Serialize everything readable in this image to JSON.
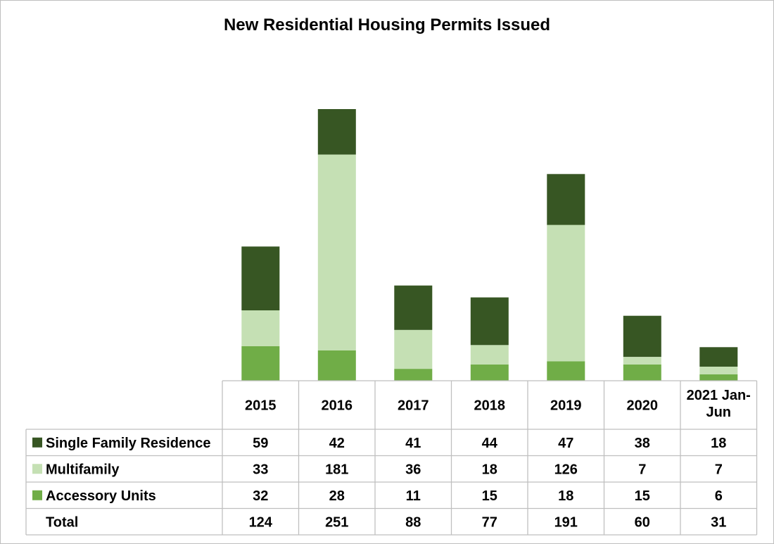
{
  "chart_data": {
    "type": "bar",
    "stacked": true,
    "title": "New Residential Housing Permits Issued",
    "categories": [
      "2015",
      "2016",
      "2017",
      "2018",
      "2019",
      "2020",
      "2021 Jan-Jun"
    ],
    "series": [
      {
        "name": "Accessory Units",
        "color": "#70ad47",
        "values": [
          32,
          28,
          11,
          15,
          18,
          15,
          6
        ]
      },
      {
        "name": "Multifamily",
        "color": "#c5e0b4",
        "values": [
          33,
          181,
          36,
          18,
          126,
          7,
          7
        ]
      },
      {
        "name": "Single Family Residence",
        "color": "#375623",
        "values": [
          59,
          42,
          41,
          44,
          47,
          38,
          18
        ]
      }
    ],
    "table_rows": [
      {
        "label": "Single Family Residence",
        "color": "#375623",
        "values": [
          "59",
          "42",
          "41",
          "44",
          "47",
          "38",
          "18"
        ]
      },
      {
        "label": "Multifamily",
        "color": "#c5e0b4",
        "values": [
          "33",
          "181",
          "36",
          "18",
          "126",
          "7",
          "7"
        ]
      },
      {
        "label": "Accessory Units",
        "color": "#70ad47",
        "values": [
          "32",
          "28",
          "11",
          "15",
          "18",
          "15",
          "6"
        ]
      },
      {
        "label": "Total",
        "color": null,
        "values": [
          "124",
          "251",
          "88",
          "77",
          "191",
          "60",
          "31"
        ]
      }
    ],
    "ylim": [
      0,
      251
    ],
    "grid": false,
    "legend": "data-table"
  }
}
